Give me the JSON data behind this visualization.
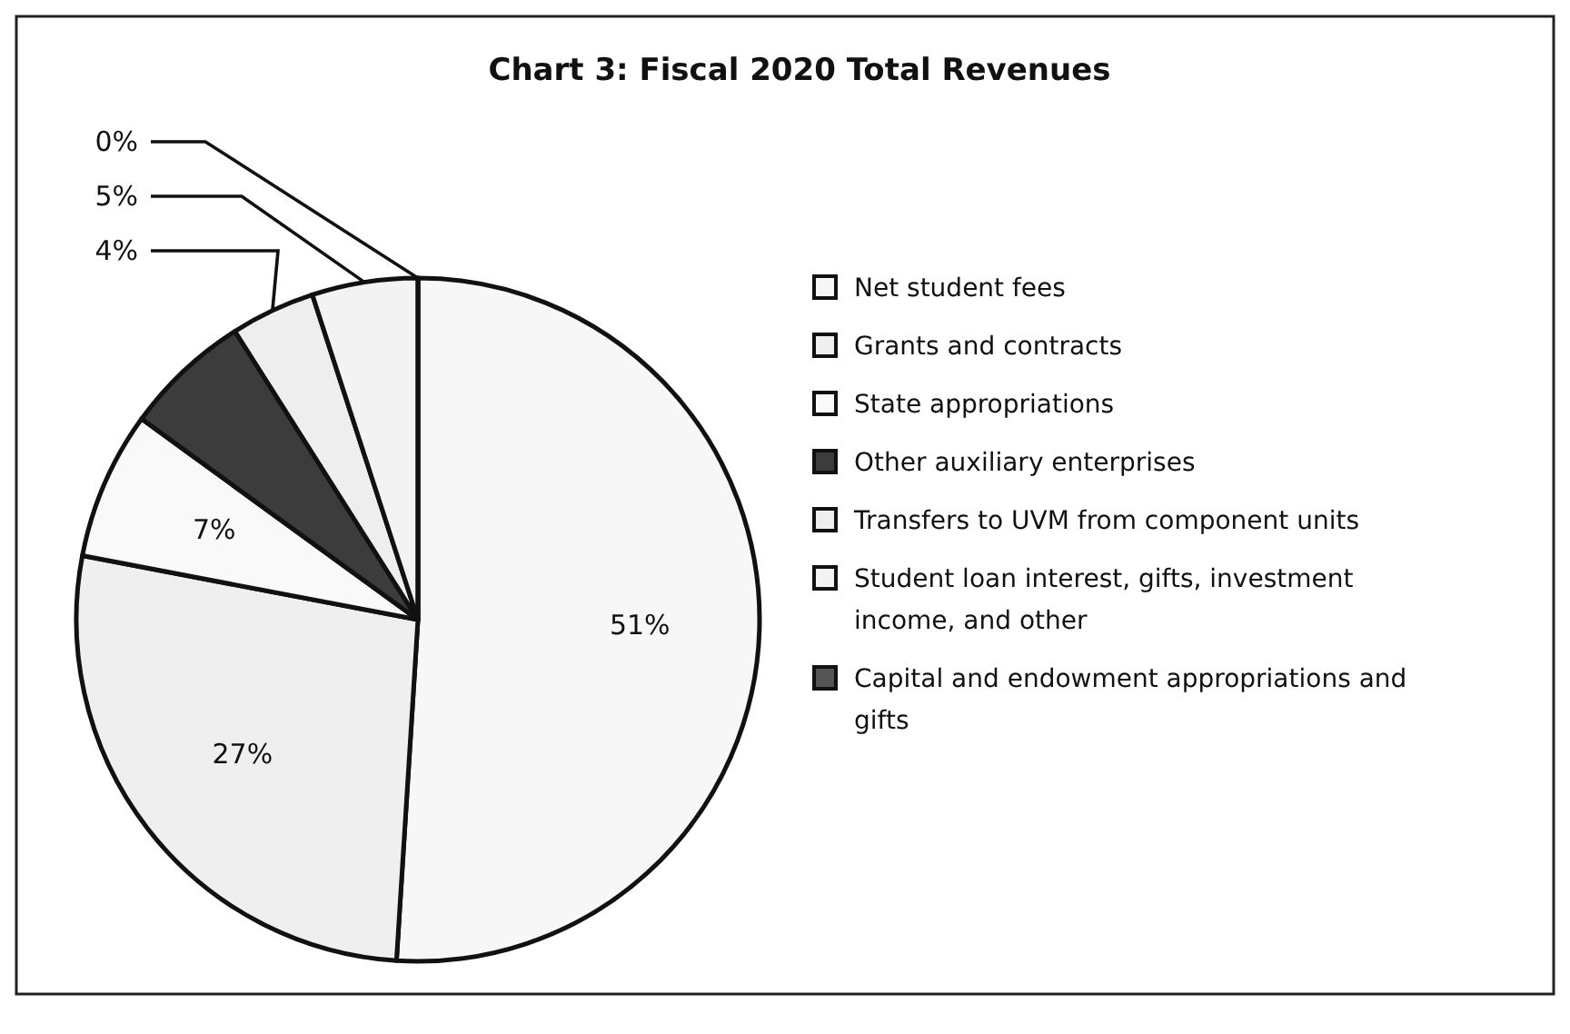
{
  "chart_data": {
    "type": "pie",
    "title": "Chart 3: Fiscal 2020 Total Revenues",
    "categories": [
      "Net student fees",
      "Grants and contracts",
      "State appropriations",
      "Other auxiliary enterprises",
      "Transfers to UVM from component units",
      "Student loan interest, gifts, investment income, and other",
      "Capital and endowment appropriations and gifts"
    ],
    "values": [
      51,
      27,
      7,
      6,
      4,
      5,
      0
    ],
    "value_labels": [
      "51%",
      "27%",
      "7%",
      null,
      "4%",
      "5%",
      "0%"
    ],
    "colors": [
      "#f7f7f7",
      "#efefef",
      "#f9f9f9",
      "#3c3c3c",
      "#eeeeee",
      "#f3f3f3",
      "#555555"
    ],
    "legend": "right"
  }
}
